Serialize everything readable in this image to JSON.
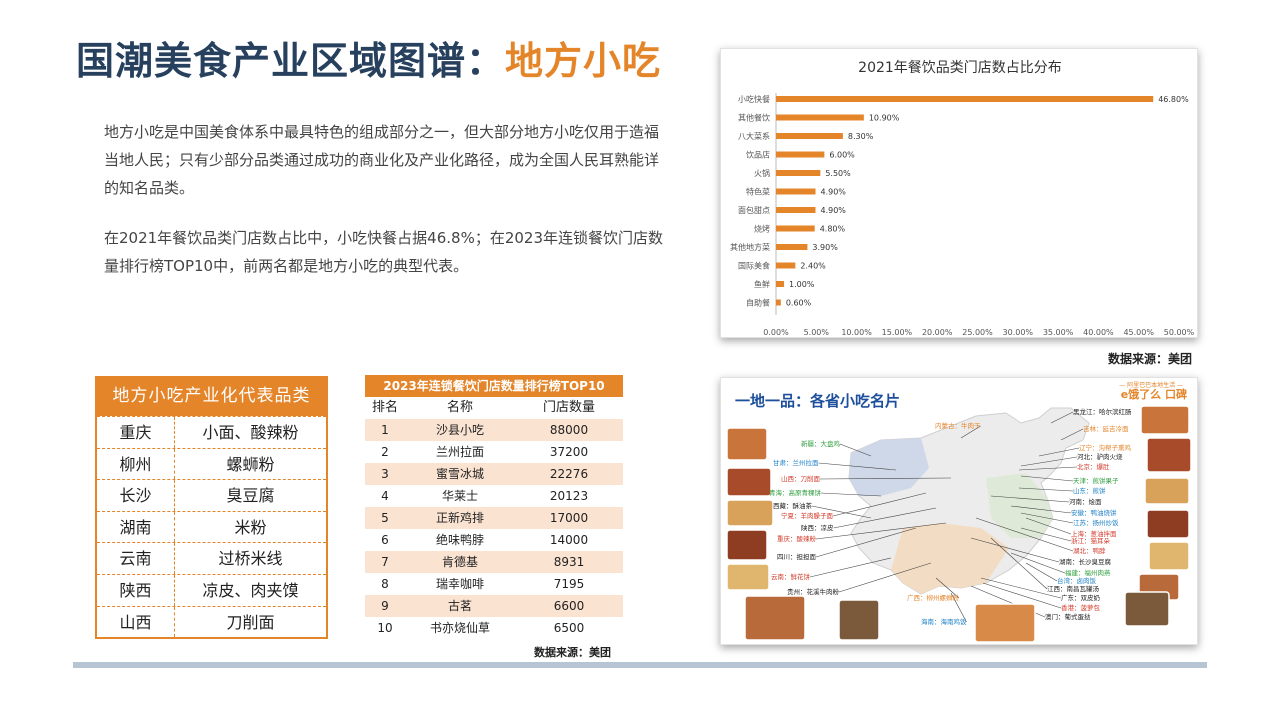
{
  "title": {
    "main": "国潮美食产业区域图谱：",
    "accent": "地方小吃"
  },
  "intro": {
    "p1": "地方小吃是中国美食体系中最具特色的组成部分之一，但大部分地方小吃仅用于造福当地人民；只有少部分品类通过成功的商业化及产业化路径，成为全国人民耳熟能详的知名品类。",
    "p2": "在2021年餐饮品类门店数占比中，小吃快餐占据46.8%；在2023年连锁餐饮门店数量排行榜TOP10中，前两名都是地方小吃的典型代表。"
  },
  "colors": {
    "accent": "#e4852a",
    "title": "#26405e",
    "map_title": "#1d4f9c"
  },
  "chart_data": {
    "type": "bar",
    "orientation": "horizontal",
    "title": "2021年餐饮品类门店数占比分布",
    "categories": [
      "小吃快餐",
      "其他餐饮",
      "八大菜系",
      "饮品店",
      "火锅",
      "特色菜",
      "面包甜点",
      "烧烤",
      "其他地方菜",
      "国际美食",
      "鱼鲜",
      "自助餐"
    ],
    "values": [
      46.8,
      10.9,
      8.3,
      6.0,
      5.5,
      4.9,
      4.9,
      4.8,
      3.9,
      2.4,
      1.0,
      0.6
    ],
    "value_labels": [
      "46.80%",
      "10.90%",
      "8.30%",
      "6.00%",
      "5.50%",
      "4.90%",
      "4.90%",
      "4.80%",
      "3.90%",
      "2.40%",
      "1.00%",
      "0.60%"
    ],
    "xlim": [
      0,
      50
    ],
    "xticks": [
      "0.00%",
      "5.00%",
      "10.00%",
      "15.00%",
      "20.00%",
      "25.00%",
      "30.00%",
      "35.00%",
      "40.00%",
      "45.00%",
      "50.00%"
    ],
    "color": "#e4852a",
    "grid": false
  },
  "chart_source": "数据来源：美团",
  "rep_table": {
    "header": "地方小吃产业化代表品类",
    "rows": [
      {
        "region": "重庆",
        "dish": "小面、酸辣粉"
      },
      {
        "region": "柳州",
        "dish": "螺蛳粉"
      },
      {
        "region": "长沙",
        "dish": "臭豆腐"
      },
      {
        "region": "湖南",
        "dish": "米粉"
      },
      {
        "region": "云南",
        "dish": "过桥米线"
      },
      {
        "region": "陕西",
        "dish": "凉皮、肉夹馍"
      },
      {
        "region": "山西",
        "dish": "刀削面"
      }
    ]
  },
  "rank_table": {
    "title": "2023年连锁餐饮门店数量排行榜TOP10",
    "headers": [
      "排名",
      "名称",
      "门店数量"
    ],
    "rows": [
      [
        "1",
        "沙县小吃",
        "88000"
      ],
      [
        "2",
        "兰州拉面",
        "37200"
      ],
      [
        "3",
        "蜜雪冰城",
        "22276"
      ],
      [
        "4",
        "华莱士",
        "20123"
      ],
      [
        "5",
        "正新鸡排",
        "17000"
      ],
      [
        "6",
        "绝味鸭脖",
        "14000"
      ],
      [
        "7",
        "肯德基",
        "8931"
      ],
      [
        "8",
        "瑞幸咖啡",
        "7195"
      ],
      [
        "9",
        "古茗",
        "6600"
      ],
      [
        "10",
        "书亦烧仙草",
        "6500"
      ]
    ],
    "source": "数据来源：美团"
  },
  "map": {
    "title": "一地一品：各省小吃名片",
    "logo": "e饿了么 口碑",
    "slogan": "— 阿里巴巴本地生活 —",
    "labels": [
      {
        "text": "内蒙古：牛肉干",
        "color": "#e4852a"
      },
      {
        "text": "黑龙江：哈尔滨红肠",
        "color": "#222"
      },
      {
        "text": "新疆：大盘鸡",
        "color": "#2e9e3e"
      },
      {
        "text": "吉林：延吉冷面",
        "color": "#e4852a"
      },
      {
        "text": "辽宁：沟帮子熏鸡",
        "color": "#e4852a"
      },
      {
        "text": "甘肃：兰州拉面",
        "color": "#1d7fc8"
      },
      {
        "text": "河北：驴肉火烧",
        "color": "#222"
      },
      {
        "text": "北京：爆肚",
        "color": "#d23a2a"
      },
      {
        "text": "山西：刀削面",
        "color": "#d23a2a"
      },
      {
        "text": "天津：煎饼果子",
        "color": "#2e9e3e"
      },
      {
        "text": "青海：高原青稞饼",
        "color": "#2e9e3e"
      },
      {
        "text": "山东：煎饼",
        "color": "#1d7fc8"
      },
      {
        "text": "河南：烩面",
        "color": "#222"
      },
      {
        "text": "西藏：酥油茶",
        "color": "#222"
      },
      {
        "text": "安徽：鸭油烧饼",
        "color": "#1d7fc8"
      },
      {
        "text": "宁夏：羊肉臊子面",
        "color": "#d23a2a"
      },
      {
        "text": "江苏：扬州炒饭",
        "color": "#1d7fc8"
      },
      {
        "text": "陕西：凉皮",
        "color": "#222"
      },
      {
        "text": "上海：葱油拌面",
        "color": "#d23a2a"
      },
      {
        "text": "重庆：酸辣粉",
        "color": "#d23a2a"
      },
      {
        "text": "浙江：猫耳朵",
        "color": "#d23a2a"
      },
      {
        "text": "湖北：鸭脖",
        "color": "#d23a2a"
      },
      {
        "text": "四川：担担面",
        "color": "#222"
      },
      {
        "text": "湖南：长沙臭豆腐",
        "color": "#222"
      },
      {
        "text": "福建：福州肉燕",
        "color": "#2e9e3e"
      },
      {
        "text": "云南：鲜花饼",
        "color": "#d23a2a"
      },
      {
        "text": "台湾：卤肉饭",
        "color": "#1d7fc8"
      },
      {
        "text": "江西：南昌瓦罐汤",
        "color": "#222"
      },
      {
        "text": "贵州：花溪牛肉粉",
        "color": "#222"
      },
      {
        "text": "广东：双皮奶",
        "color": "#222"
      },
      {
        "text": "香港：菠萝包",
        "color": "#d23a2a"
      },
      {
        "text": "广西：柳州螺蛳粉",
        "color": "#e4852a"
      },
      {
        "text": "澳门：葡式蛋挞",
        "color": "#222"
      },
      {
        "text": "海南：海南鸡饭",
        "color": "#1d7fc8"
      }
    ]
  }
}
